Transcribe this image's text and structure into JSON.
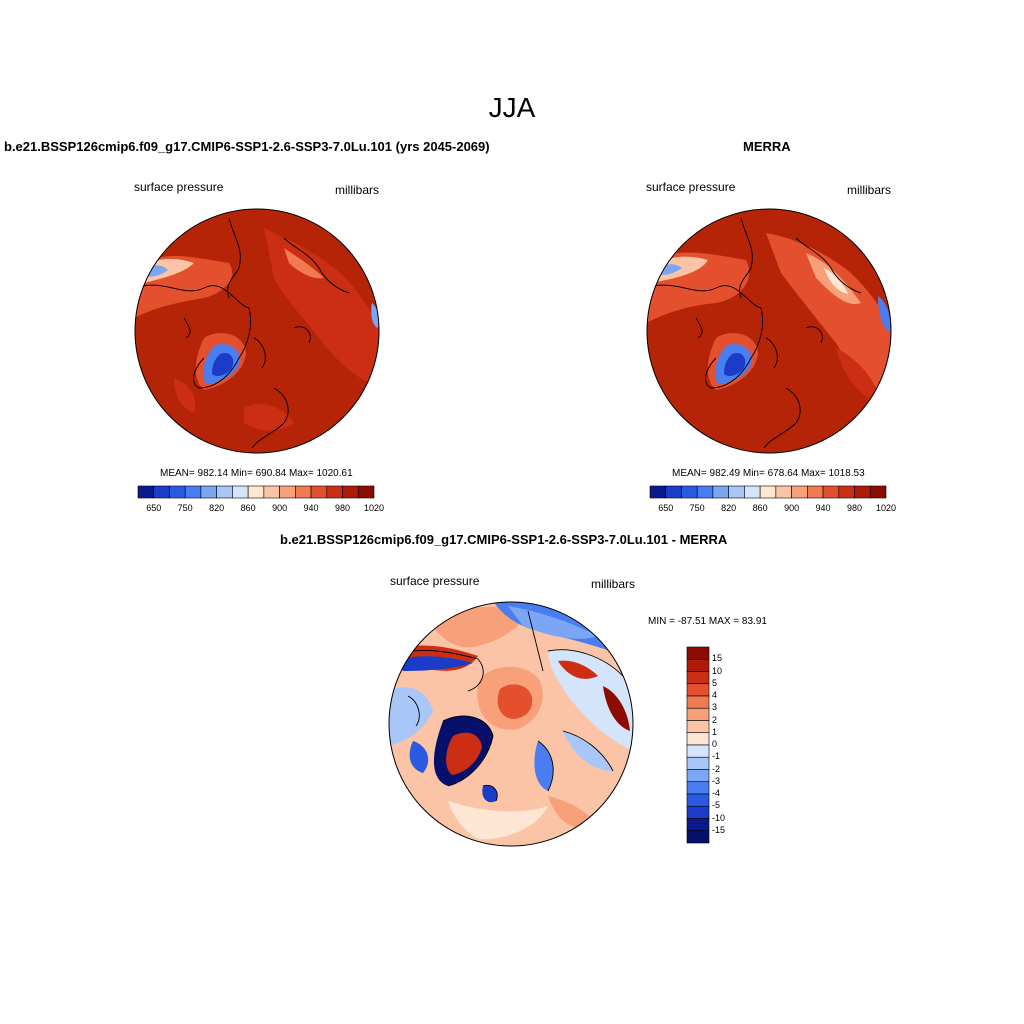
{
  "figure": {
    "season": "JJA"
  },
  "panels": {
    "model": {
      "title": "b.e21.BSSP126cmip6.f09_g17.CMIP6-SSP1-2.6-SSP3-7.0Lu.101 (yrs 2045-2069)",
      "variable": "surface pressure",
      "units": "millibars",
      "stats": "MEAN= 982.14  Min= 690.84  Max= 1020.61"
    },
    "obs": {
      "title": "MERRA",
      "variable": "surface pressure",
      "units": "millibars",
      "stats": "MEAN= 982.49  Min= 678.64  Max= 1018.53"
    },
    "diff": {
      "title": "b.e21.BSSP126cmip6.f09_g17.CMIP6-SSP1-2.6-SSP3-7.0Lu.101 - MERRA",
      "variable": "surface pressure",
      "units": "millibars",
      "stats": "MIN = -87.51 MAX =  83.91"
    }
  },
  "colorbars": {
    "absolute": {
      "orientation": "horizontal",
      "colors": [
        "#0a1a8c",
        "#1a3cc8",
        "#2a5ae0",
        "#4a7ef0",
        "#7aa6f5",
        "#a8c6f7",
        "#d4e4fb",
        "#fde6d4",
        "#fbc4a6",
        "#f7a07a",
        "#f27a52",
        "#e4502e",
        "#cc2e14",
        "#b01a08",
        "#8c0c02"
      ],
      "tick_labels": [
        "650",
        "750",
        "820",
        "860",
        "900",
        "940",
        "980",
        "1020"
      ]
    },
    "difference": {
      "orientation": "vertical",
      "colors": [
        "#8c0c02",
        "#b01a08",
        "#cc2e14",
        "#e4502e",
        "#f27a52",
        "#f7a07a",
        "#fbc4a6",
        "#fde6d4",
        "#d4e4fb",
        "#a8c6f7",
        "#7aa6f5",
        "#4a7ef0",
        "#2a5ae0",
        "#1a3cc8",
        "#0a1a8c",
        "#06106a"
      ],
      "tick_labels": [
        "15",
        "10",
        "5",
        "4",
        "3",
        "2",
        "1",
        "0",
        "-1",
        "-2",
        "-3",
        "-4",
        "-5",
        "-10",
        "-15"
      ]
    }
  }
}
